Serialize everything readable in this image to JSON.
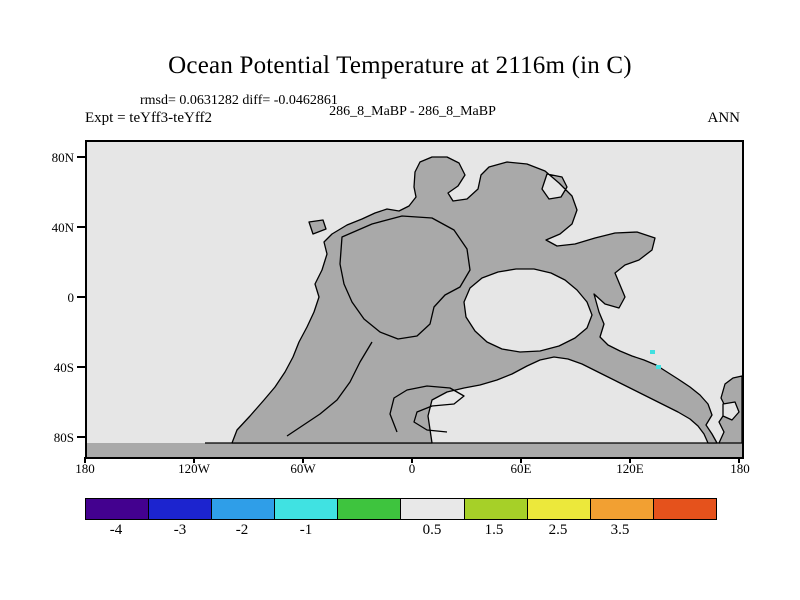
{
  "title": "Ocean Potential Temperature at 2116m (in C)",
  "stats_line": "rmsd= 0.0631282 diff= -0.0462861",
  "header": {
    "experiment": "Expt = teYff3-teYff2",
    "comparison": "286_8_MaBP - 286_8_MaBP",
    "season": "ANN"
  },
  "map": {
    "x_ticks": [
      "180",
      "120W",
      "60W",
      "0",
      "60E",
      "120E",
      "180"
    ],
    "y_ticks": [
      "80N",
      "40N",
      "0",
      "40S",
      "80S"
    ],
    "colors": {
      "ocean": "#e6e6e6",
      "land": "#a9a9a9",
      "coastline": "#000000",
      "speck": "#40e0e0"
    }
  },
  "colorbar": {
    "colors": [
      "#43018f",
      "#1c24cf",
      "#2f9ee8",
      "#40e2e2",
      "#3ec43e",
      "#e8e8e8",
      "#a6d028",
      "#ece83b",
      "#f2a032",
      "#e5521c"
    ],
    "labels": [
      "-4",
      "-3",
      "-2",
      "-1",
      "0.5",
      "1.5",
      "2.5",
      "3.5"
    ]
  },
  "chart_data": {
    "type": "heatmap",
    "title": "Ocean Potential Temperature at 2116m (in C)",
    "comparison": "286_8_MaBP - 286_8_MaBP",
    "experiment": "Expt = teYff3-teYff2",
    "season": "ANN",
    "rmsd": 0.0631282,
    "diff": -0.0462861,
    "x_axis": {
      "ticks": [
        "180",
        "120W",
        "60W",
        "0",
        "60E",
        "120E",
        "180"
      ]
    },
    "y_axis": {
      "ticks": [
        "80N",
        "40N",
        "0",
        "40S",
        "80S"
      ]
    },
    "color_scale": {
      "bin_labels": [
        -4,
        -3,
        -2,
        -1,
        0.5,
        1.5,
        2.5,
        3.5
      ],
      "colors": [
        "#43018f",
        "#1c24cf",
        "#2f9ee8",
        "#40e2e2",
        "#3ec43e",
        "#e8e8e8",
        "#a6d028",
        "#ece83b",
        "#f2a032",
        "#e5521c"
      ]
    },
    "field_summary": "Difference field is near zero over the entire ocean (plotted in the light-gray 0 to 0.5 bin) with a few cyan specks of small negative anomaly near 120E/40S; dark gray is the Pangaea-era land mask outlined with black coastline contours, including a continuous land band along the southern map edge."
  }
}
